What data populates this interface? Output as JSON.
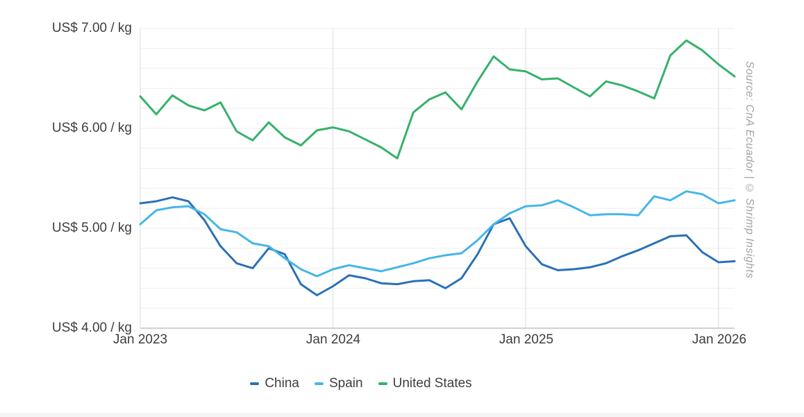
{
  "y_axis": {
    "labels": [
      "US$ 7.00 / kg",
      "US$ 6.00 / kg",
      "US$ 5.00 / kg",
      "US$ 4.00 / kg"
    ]
  },
  "x_axis": {
    "labels": [
      "Jan 2023",
      "Jan 2024",
      "Jan 2025",
      "Jan 2026"
    ]
  },
  "legend": {
    "items": [
      {
        "label": "China",
        "color": "#2a70b8"
      },
      {
        "label": "Spain",
        "color": "#45b6e8"
      },
      {
        "label": "United States",
        "color": "#36b16a"
      }
    ]
  },
  "source_note": "Source: CnA Ecuador | © Shrimp Insights",
  "chart_data": {
    "type": "line",
    "title": "",
    "xlabel": "",
    "ylabel": "US$ / kg",
    "ylim": [
      4,
      7
    ],
    "yticks": [
      "US$ 4.00 / kg",
      "US$ 5.00 / kg",
      "US$ 6.00 / kg",
      "US$ 7.00 / kg"
    ],
    "xticks": [
      "Jan 2023",
      "Jan 2024",
      "Jan 2025",
      "Jan 2026"
    ],
    "grid": "horizontal minor gridlines every 0.2, vertical gridlines at each January",
    "legend_position": "bottom",
    "categories": [
      "2023-01",
      "2023-02",
      "2023-03",
      "2023-04",
      "2023-05",
      "2023-06",
      "2023-07",
      "2023-08",
      "2023-09",
      "2023-10",
      "2023-11",
      "2023-12",
      "2024-01",
      "2024-02",
      "2024-03",
      "2024-04",
      "2024-05",
      "2024-06",
      "2024-07",
      "2024-08",
      "2024-09",
      "2024-10",
      "2024-11",
      "2024-12",
      "2025-01",
      "2025-02",
      "2025-03",
      "2025-04",
      "2025-05",
      "2025-06",
      "2025-07",
      "2025-08",
      "2025-09",
      "2025-10",
      "2025-11",
      "2025-12",
      "2026-01",
      "2026-02"
    ],
    "series": [
      {
        "name": "China",
        "color": "#2a70b8",
        "values": [
          5.25,
          5.27,
          5.31,
          5.27,
          5.08,
          4.82,
          4.65,
          4.6,
          4.8,
          4.74,
          4.44,
          4.33,
          4.42,
          4.53,
          4.5,
          4.45,
          4.44,
          4.47,
          4.48,
          4.4,
          4.5,
          4.74,
          5.04,
          5.1,
          4.82,
          4.64,
          4.58,
          4.59,
          4.61,
          4.65,
          4.72,
          4.78,
          4.85,
          4.92,
          4.93,
          4.76,
          4.66,
          4.67
        ]
      },
      {
        "name": "Spain",
        "color": "#45b6e8",
        "values": [
          5.04,
          5.18,
          5.21,
          5.22,
          5.14,
          4.99,
          4.96,
          4.85,
          4.82,
          4.7,
          4.59,
          4.52,
          4.59,
          4.63,
          4.6,
          4.57,
          4.61,
          4.65,
          4.7,
          4.73,
          4.75,
          4.88,
          5.04,
          5.15,
          5.22,
          5.23,
          5.28,
          5.21,
          5.13,
          5.14,
          5.14,
          5.13,
          5.32,
          5.28,
          5.37,
          5.34,
          5.25,
          5.28
        ]
      },
      {
        "name": "United States",
        "color": "#36b16a",
        "values": [
          6.32,
          6.14,
          6.33,
          6.23,
          6.18,
          6.26,
          5.97,
          5.88,
          6.06,
          5.91,
          5.83,
          5.98,
          6.01,
          5.97,
          5.89,
          5.81,
          5.7,
          6.16,
          6.29,
          6.36,
          6.19,
          6.47,
          6.72,
          6.59,
          6.57,
          6.49,
          6.5,
          6.41,
          6.32,
          6.47,
          6.43,
          6.37,
          6.3,
          6.73,
          6.88,
          6.78,
          6.64,
          6.52
        ]
      }
    ]
  }
}
